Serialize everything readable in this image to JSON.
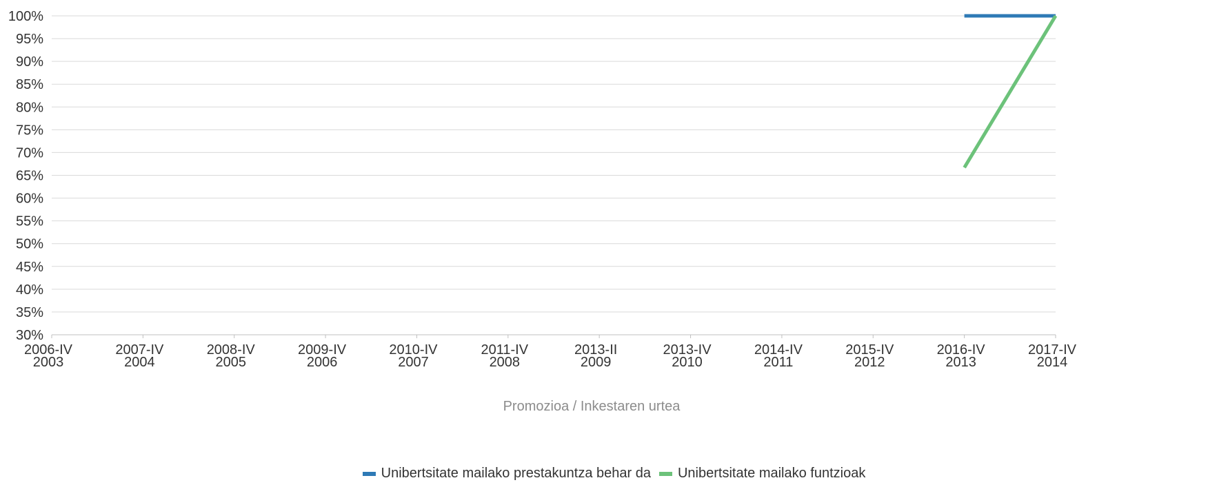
{
  "chart_data": {
    "type": "line",
    "title": "",
    "xlabel": "Promozioa / Inkestaren urtea",
    "ylabel": "",
    "categories": [
      [
        "2006-IV",
        "2003"
      ],
      [
        "2007-IV",
        "2004"
      ],
      [
        "2008-IV",
        "2005"
      ],
      [
        "2009-IV",
        "2006"
      ],
      [
        "2010-IV",
        "2007"
      ],
      [
        "2011-IV",
        "2008"
      ],
      [
        "2013-II",
        "2009"
      ],
      [
        "2013-IV",
        "2010"
      ],
      [
        "2014-IV",
        "2011"
      ],
      [
        "2015-IV",
        "2012"
      ],
      [
        "2016-IV",
        "2013"
      ],
      [
        "2017-IV",
        "2014"
      ]
    ],
    "ylim": [
      30,
      100
    ],
    "yticks": [
      "30%",
      "35%",
      "40%",
      "45%",
      "50%",
      "55%",
      "60%",
      "65%",
      "70%",
      "75%",
      "80%",
      "85%",
      "90%",
      "95%",
      "100%"
    ],
    "grid": true,
    "legend_position": "bottom",
    "series": [
      {
        "name": "Unibertsitate mailako prestakuntza behar da",
        "color": "#2e7ab6",
        "values": [
          null,
          null,
          null,
          null,
          null,
          null,
          null,
          null,
          null,
          null,
          100,
          100
        ]
      },
      {
        "name": "Unibertsitate mailako funtzioak",
        "color": "#6cc27a",
        "values": [
          null,
          null,
          null,
          null,
          null,
          null,
          null,
          null,
          null,
          null,
          66.7,
          100
        ]
      }
    ]
  }
}
